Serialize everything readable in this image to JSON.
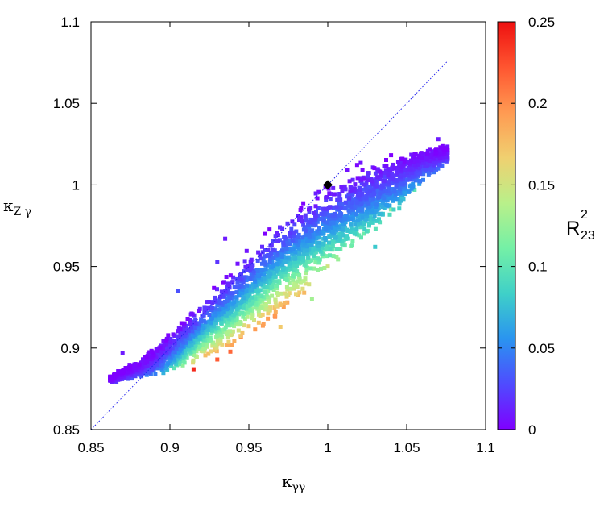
{
  "chart_data": {
    "type": "scatter",
    "xlabel": "κ",
    "xlabel_sub": "γγ",
    "ylabel": "κ",
    "ylabel_sub": "Z γ",
    "xlim": [
      0.85,
      1.1
    ],
    "ylim": [
      0.85,
      1.1
    ],
    "x_ticks": [
      "0.85",
      "0.9",
      "0.95",
      "1",
      "1.05",
      "1.1"
    ],
    "y_ticks": [
      "0.85",
      "0.9",
      "0.95",
      "1",
      "1.05",
      "1.1"
    ],
    "colorbar": {
      "title": "R",
      "title_sup": "2",
      "title_sub": "23",
      "range": [
        0,
        0.25
      ],
      "ticks": [
        "0",
        "0.05",
        "0.1",
        "0.15",
        "0.2",
        "0.25"
      ],
      "colormap": [
        "#7f00ff",
        "#4f4bff",
        "#2a94f0",
        "#3fd0c8",
        "#74f0a6",
        "#b9f08a",
        "#f0d070",
        "#ff9a52",
        "#ff5530",
        "#ee1010"
      ]
    },
    "reference_line": {
      "from": [
        0.85,
        0.85
      ],
      "to": [
        1.076,
        1.076
      ],
      "style": "dotted",
      "color": "#2020ee"
    },
    "sm_point": {
      "x": 1.0,
      "y": 1.0,
      "marker": "diamond",
      "color": "#000000"
    },
    "scatter_region": {
      "x_range": [
        0.862,
        1.076
      ],
      "centerline": [
        [
          0.862,
          0.881
        ],
        [
          0.88,
          0.887
        ],
        [
          0.9,
          0.897
        ],
        [
          0.92,
          0.91
        ],
        [
          0.94,
          0.925
        ],
        [
          0.96,
          0.942
        ],
        [
          0.98,
          0.958
        ],
        [
          1.0,
          0.973
        ],
        [
          1.02,
          0.987
        ],
        [
          1.04,
          1.0
        ],
        [
          1.06,
          1.012
        ],
        [
          1.076,
          1.02
        ]
      ],
      "half_width": [
        [
          0.862,
          0.003
        ],
        [
          0.88,
          0.006
        ],
        [
          0.9,
          0.015
        ],
        [
          0.93,
          0.026
        ],
        [
          0.96,
          0.034
        ],
        [
          1.0,
          0.034
        ],
        [
          1.03,
          0.027
        ],
        [
          1.06,
          0.014
        ],
        [
          1.076,
          0.006
        ]
      ],
      "r2_max": [
        [
          0.862,
          0.02
        ],
        [
          0.89,
          0.06
        ],
        [
          0.92,
          0.22
        ],
        [
          0.97,
          0.23
        ],
        [
          1.02,
          0.14
        ],
        [
          1.06,
          0.07
        ],
        [
          1.076,
          0.03
        ]
      ],
      "point_count": 3200,
      "outliers": [
        [
          0.915,
          0.887,
          0.24
        ],
        [
          0.93,
          0.893,
          0.22
        ],
        [
          0.945,
          0.907,
          0.2
        ],
        [
          0.97,
          0.913,
          0.17
        ],
        [
          0.99,
          0.93,
          0.13
        ],
        [
          1.03,
          0.962,
          0.08
        ],
        [
          0.87,
          0.897,
          0.01
        ],
        [
          0.873,
          0.883,
          0.02
        ],
        [
          0.905,
          0.935,
          0.03
        ],
        [
          0.93,
          0.953,
          0.02
        ],
        [
          0.935,
          0.967,
          0.01
        ],
        [
          0.96,
          0.97,
          0.0
        ],
        [
          0.988,
          0.985,
          0.01
        ],
        [
          1.07,
          1.028,
          0.01
        ],
        [
          1.055,
          0.997,
          0.1
        ],
        [
          1.04,
          0.985,
          0.12
        ],
        [
          0.905,
          0.89,
          0.14
        ],
        [
          1.0,
          0.95,
          0.15
        ]
      ]
    }
  }
}
